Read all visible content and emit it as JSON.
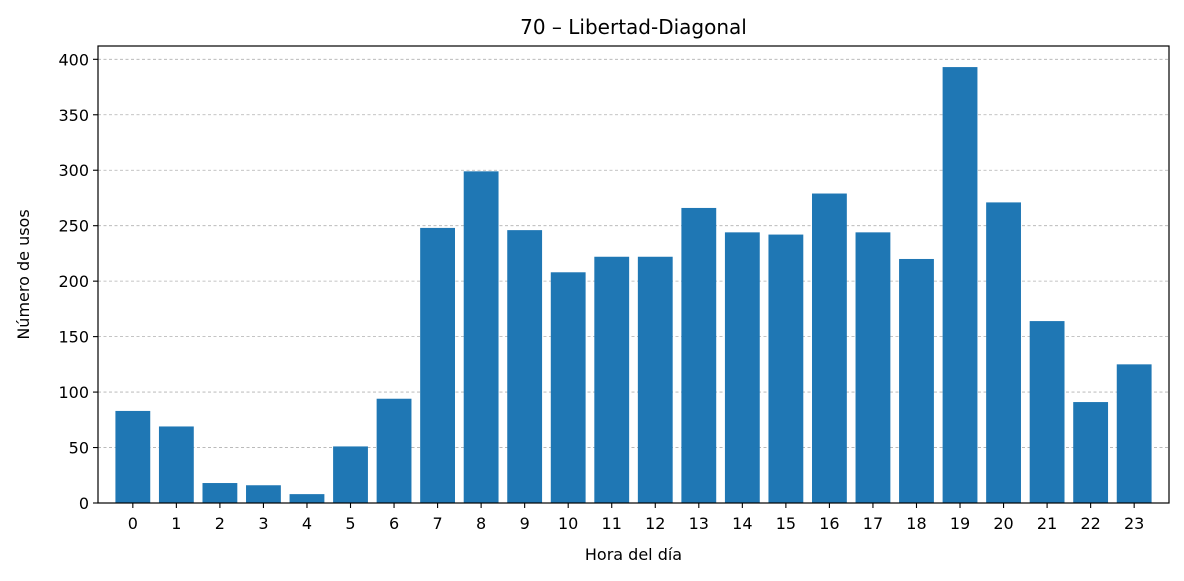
{
  "chart_data": {
    "type": "bar",
    "title": "70 – Libertad-Diagonal",
    "xlabel": "Hora del día",
    "ylabel": "Número de usos",
    "categories": [
      "0",
      "1",
      "2",
      "3",
      "4",
      "5",
      "6",
      "7",
      "8",
      "9",
      "10",
      "11",
      "12",
      "13",
      "14",
      "15",
      "16",
      "17",
      "18",
      "19",
      "20",
      "21",
      "22",
      "23"
    ],
    "values": [
      83,
      69,
      18,
      16,
      8,
      51,
      94,
      248,
      299,
      246,
      208,
      222,
      222,
      266,
      244,
      242,
      279,
      244,
      220,
      393,
      271,
      164,
      91,
      125
    ],
    "ylim": [
      0,
      412
    ],
    "yticks": [
      0,
      50,
      100,
      150,
      200,
      250,
      300,
      350,
      400
    ],
    "grid": "y-dashed",
    "bar_color": "#1f77b4"
  }
}
